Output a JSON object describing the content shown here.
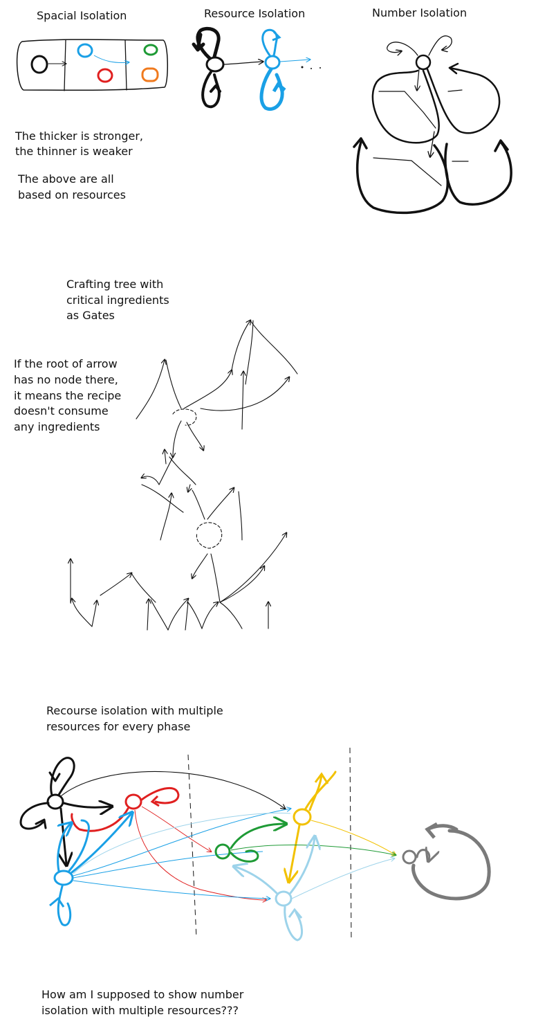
{
  "labels": {
    "spatial": "Spacial Isolation",
    "resource": "Resource Isolation",
    "number": "Number Isolation",
    "thickness_note": [
      "The thicker is stronger,",
      "the thinner is weaker"
    ],
    "resources_note": [
      "The above are all",
      "based on resources"
    ],
    "crafting_title": [
      "Crafting tree with",
      "critical ingredients",
      "as Gates"
    ],
    "root_note": [
      "If the root of arrow",
      "has no node there,",
      "it means the recipe",
      "doesn't consume",
      "any ingredients"
    ],
    "multi_title": [
      "Recourse isolation with multiple",
      "resources for every phase"
    ],
    "question": [
      "How am I supposed to show number",
      "isolation with multiple resources???"
    ]
  },
  "colors": {
    "ink": "#111111",
    "blue": "#1aa0e6",
    "light_blue": "#9dd3ea",
    "red": "#e02020",
    "green": "#1e9a35",
    "orange": "#f07a1e",
    "yellow": "#f2c100",
    "gray": "#7a7a7a"
  }
}
